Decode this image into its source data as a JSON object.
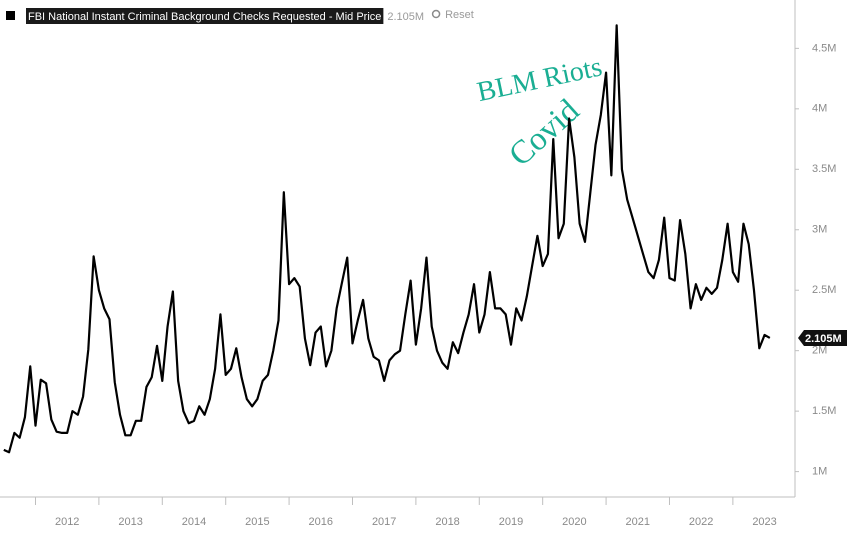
{
  "chart_data": {
    "type": "line",
    "series": [
      {
        "name": "FBI National Instant Criminal Background Checks Requested - Mid Price",
        "color": "#000000",
        "values": [
          1.18,
          1.16,
          1.32,
          1.28,
          1.45,
          1.87,
          1.38,
          1.76,
          1.73,
          1.43,
          1.33,
          1.32,
          1.32,
          1.5,
          1.47,
          1.62,
          2.01,
          2.78,
          2.5,
          2.35,
          2.26,
          1.74,
          1.47,
          1.3,
          1.3,
          1.42,
          1.42,
          1.7,
          1.78,
          2.04,
          1.75,
          2.2,
          2.49,
          1.75,
          1.5,
          1.4,
          1.42,
          1.54,
          1.47,
          1.6,
          1.85,
          2.3,
          1.8,
          1.85,
          2.02,
          1.78,
          1.6,
          1.54,
          1.6,
          1.75,
          1.8,
          2.0,
          2.25,
          3.31,
          2.55,
          2.6,
          2.53,
          2.1,
          1.88,
          2.15,
          2.2,
          1.87,
          2.0,
          2.35,
          2.56,
          2.77,
          2.06,
          2.25,
          2.42,
          2.1,
          1.95,
          1.92,
          1.75,
          1.92,
          1.97,
          2.0,
          2.3,
          2.58,
          2.05,
          2.35,
          2.77,
          2.2,
          2.0,
          1.9,
          1.85,
          2.07,
          1.98,
          2.15,
          2.3,
          2.55,
          2.15,
          2.3,
          2.65,
          2.35,
          2.35,
          2.3,
          2.05,
          2.35,
          2.25,
          2.45,
          2.7,
          2.95,
          2.7,
          2.8,
          3.75,
          2.93,
          3.05,
          3.92,
          3.6,
          3.05,
          2.9,
          3.3,
          3.7,
          3.95,
          4.3,
          3.45,
          4.69,
          3.5,
          3.25,
          3.1,
          2.95,
          2.8,
          2.65,
          2.6,
          2.75,
          3.1,
          2.6,
          2.58,
          3.08,
          2.8,
          2.35,
          2.55,
          2.42,
          2.52,
          2.47,
          2.52,
          2.75,
          3.05,
          2.65,
          2.57,
          3.05,
          2.88,
          2.5,
          2.02,
          2.13,
          2.105
        ]
      }
    ],
    "x": [
      2011.5,
      2011.583,
      2011.667,
      2011.75,
      2011.833,
      2011.917,
      2012,
      2012.083,
      2012.167,
      2012.25,
      2012.333,
      2012.417,
      2012.5,
      2012.583,
      2012.667,
      2012.75,
      2012.833,
      2012.917,
      2013,
      2013.083,
      2013.167,
      2013.25,
      2013.333,
      2013.417,
      2013.5,
      2013.583,
      2013.667,
      2013.75,
      2013.833,
      2013.917,
      2014,
      2014.083,
      2014.167,
      2014.25,
      2014.333,
      2014.417,
      2014.5,
      2014.583,
      2014.667,
      2014.75,
      2014.833,
      2014.917,
      2015,
      2015.083,
      2015.167,
      2015.25,
      2015.333,
      2015.417,
      2015.5,
      2015.583,
      2015.667,
      2015.75,
      2015.833,
      2015.917,
      2016,
      2016.083,
      2016.167,
      2016.25,
      2016.333,
      2016.417,
      2016.5,
      2016.583,
      2016.667,
      2016.75,
      2016.833,
      2016.917,
      2017,
      2017.083,
      2017.167,
      2017.25,
      2017.333,
      2017.417,
      2017.5,
      2017.583,
      2017.667,
      2017.75,
      2017.833,
      2017.917,
      2018,
      2018.083,
      2018.167,
      2018.25,
      2018.333,
      2018.417,
      2018.5,
      2018.583,
      2018.667,
      2018.75,
      2018.833,
      2018.917,
      2019,
      2019.083,
      2019.167,
      2019.25,
      2019.333,
      2019.417,
      2019.5,
      2019.583,
      2019.667,
      2019.75,
      2019.833,
      2019.917,
      2020,
      2020.083,
      2020.167,
      2020.25,
      2020.333,
      2020.417,
      2020.5,
      2020.583,
      2020.667,
      2020.75,
      2020.833,
      2020.917,
      2021,
      2021.083,
      2021.167,
      2021.25,
      2021.333,
      2021.417,
      2021.5,
      2021.583,
      2021.667,
      2021.75,
      2021.833,
      2021.917,
      2022,
      2022.083,
      2022.167,
      2022.25,
      2022.333,
      2022.417,
      2022.5,
      2022.583,
      2022.667,
      2022.75,
      2022.833,
      2022.917,
      2023,
      2023.083,
      2023.167,
      2023.25,
      2023.333,
      2023.417,
      2023.5,
      2023.583
    ],
    "xlim": [
      2011.44,
      2023.98
    ],
    "xticks": [
      2012,
      2013,
      2014,
      2015,
      2016,
      2017,
      2018,
      2019,
      2020,
      2021,
      2022,
      2023
    ],
    "ylim": [
      0.79,
      4.9
    ],
    "yticks": [
      {
        "value": 1,
        "label": "1M"
      },
      {
        "value": 1.5,
        "label": "1.5M"
      },
      {
        "value": 2,
        "label": "2M"
      },
      {
        "value": 2.5,
        "label": "2.5M"
      },
      {
        "value": 3,
        "label": "3M"
      },
      {
        "value": 3.5,
        "label": "3.5M"
      },
      {
        "value": 4,
        "label": "4M"
      },
      {
        "value": 4.5,
        "label": "4.5M"
      }
    ],
    "grid": false,
    "header_value": "2.105M",
    "reset": "Reset",
    "end_label": "2.105M",
    "annotations": [
      {
        "text": "BLM Riots"
      },
      {
        "text": "Covid"
      }
    ]
  }
}
